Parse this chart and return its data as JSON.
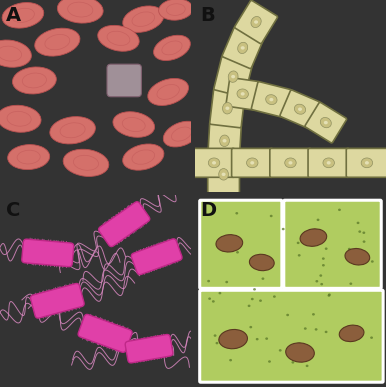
{
  "fig_width": 3.86,
  "fig_height": 3.87,
  "dpi": 100,
  "bg_A": "#c8d8e2",
  "bg_B": "#c5d5e0",
  "bg_C": "#ccdde8",
  "bg_D": "#96b852",
  "label_fontsize": 14,
  "label_fontweight": "bold",
  "label_color": "#111111",
  "panel_labels": [
    "A",
    "B",
    "C",
    "D"
  ],
  "rbc_face": "#d4706a",
  "rbc_edge": "#b85050",
  "rbc_inner": "#c05858",
  "wbc_face": "#a09098",
  "wbc_edge": "#806070",
  "fungal_face": "#ddd8a0",
  "fungal_edge": "#707040",
  "fungal_spot_face": "#c8c080",
  "fungal_spot_edge": "#909060",
  "bact_face": "#e040a8",
  "bact_edge": "#c02888",
  "bact_flagella": "#d888c0",
  "bact_cilia": "#c060a0",
  "plant_cell_face": "#b0cc60",
  "plant_cell_edge": "#ffffff",
  "plant_bg": "#7aaa40",
  "chloroplast_face": "#8b5e3c",
  "chloroplast_edge": "#5a3820",
  "plant_dot": "#5a7828"
}
